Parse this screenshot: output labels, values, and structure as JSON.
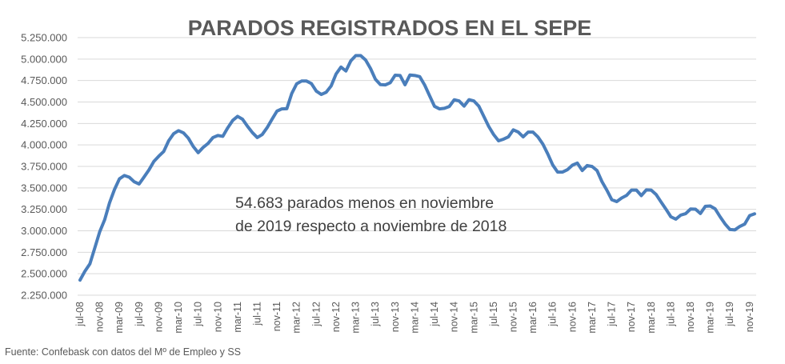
{
  "chart_data": {
    "type": "line",
    "title": "PARADOS REGISTRADOS EN EL SEPE",
    "ylim": [
      2250000,
      5250000
    ],
    "y_ticks": [
      2250000,
      2500000,
      2750000,
      3000000,
      3250000,
      3500000,
      3750000,
      4000000,
      4250000,
      4500000,
      4750000,
      5000000,
      5250000
    ],
    "y_tick_labels": [
      "2.250.000",
      "2.500.000",
      "2.750.000",
      "3.000.000",
      "3.250.000",
      "3.500.000",
      "3.750.000",
      "4.000.000",
      "4.250.000",
      "4.500.000",
      "4.750.000",
      "5.000.000",
      "5.250.000"
    ],
    "x_tick_labels": [
      "jul-08",
      "nov-08",
      "mar-09",
      "jul-09",
      "nov-09",
      "mar-10",
      "jul-10",
      "nov-10",
      "mar-11",
      "jul-11",
      "nov-11",
      "mar-12",
      "jul-12",
      "nov-12",
      "mar-13",
      "jul-13",
      "nov-13",
      "mar-14",
      "jul-14",
      "nov-14",
      "mar-15",
      "jul-15",
      "nov-15",
      "mar-16",
      "jul-16",
      "nov-16",
      "mar-17",
      "jul-17",
      "nov-17",
      "mar-18",
      "jul-18",
      "nov-18",
      "mar-19",
      "jul-19",
      "nov-19"
    ],
    "grid": true,
    "series": [
      {
        "color": "#4a7ebb",
        "values": [
          2426000,
          2530000,
          2614000,
          2800000,
          2989000,
          3128000,
          3327000,
          3481000,
          3605000,
          3644000,
          3624000,
          3571000,
          3545000,
          3626000,
          3709000,
          3808000,
          3869000,
          3924000,
          4048000,
          4130000,
          4166000,
          4141000,
          4079000,
          3982000,
          3910000,
          3971000,
          4017000,
          4086000,
          4110000,
          4100000,
          4199000,
          4285000,
          4333000,
          4300000,
          4218000,
          4144000,
          4086000,
          4121000,
          4201000,
          4300000,
          4394000,
          4420000,
          4422000,
          4599000,
          4712000,
          4744000,
          4744000,
          4714000,
          4626000,
          4588000,
          4614000,
          4687000,
          4826000,
          4907000,
          4861000,
          4980000,
          5040000,
          5040000,
          4989000,
          4890000,
          4764000,
          4703000,
          4699000,
          4724000,
          4812000,
          4809000,
          4701000,
          4814000,
          4809000,
          4795000,
          4697000,
          4572000,
          4449000,
          4420000,
          4427000,
          4448000,
          4526000,
          4512000,
          4452000,
          4527000,
          4512000,
          4451000,
          4334000,
          4216000,
          4121000,
          4048000,
          4067000,
          4094000,
          4176000,
          4150000,
          4094000,
          4149000,
          4149000,
          4093000,
          4010000,
          3895000,
          3767000,
          3684000,
          3684000,
          3712000,
          3764000,
          3789000,
          3702000,
          3760000,
          3749000,
          3702000,
          3573000,
          3473000,
          3362000,
          3340000,
          3382000,
          3412000,
          3474000,
          3474000,
          3410000,
          3476000,
          3474000,
          3423000,
          3336000,
          3252000,
          3163000,
          3136000,
          3183000,
          3200000,
          3254000,
          3252000,
          3202000,
          3285000,
          3289000,
          3255000,
          3163000,
          3080000,
          3015000,
          3011000,
          3051000,
          3079000,
          3177000,
          3198000
        ]
      }
    ],
    "annotation": [
      "54.683 parados menos en noviembre",
      "de 2019 respecto a noviembre de 2018"
    ],
    "source": "Fuente: Confebask con datos del Mº de Empleo y SS"
  }
}
